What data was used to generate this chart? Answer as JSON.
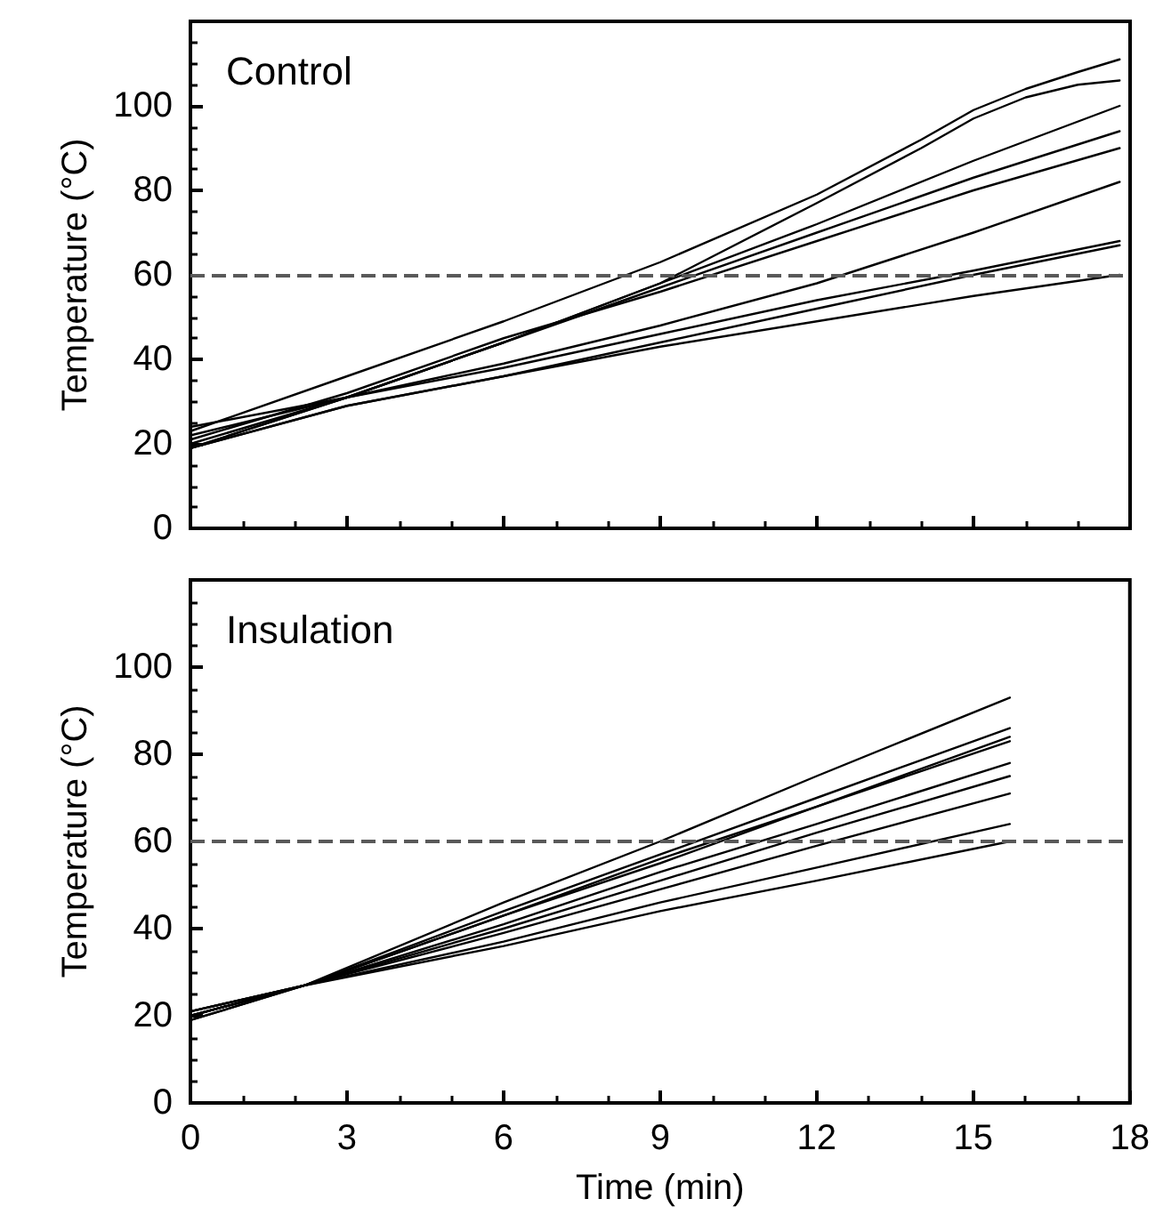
{
  "chart_data": [
    {
      "type": "line",
      "title": "Control",
      "ylabel": "Temperature (°C)",
      "xlim": [
        0,
        18
      ],
      "xticks": [
        0,
        3,
        6,
        9,
        12,
        15,
        18
      ],
      "ylim": [
        0,
        120
      ],
      "yticks": [
        0,
        20,
        40,
        60,
        80,
        100
      ],
      "tick_labels": "y",
      "line_style": "solid",
      "ref_lines": [
        {
          "axis": "y",
          "value": 60,
          "color": "#595959",
          "line_style": "dashed"
        }
      ],
      "series": [
        {
          "color": "#000000",
          "x": [
            0,
            3,
            6,
            9,
            12,
            14,
            15,
            16,
            17,
            17.8
          ],
          "values": [
            23,
            36,
            49,
            63,
            79,
            92,
            99,
            104,
            108,
            111
          ]
        },
        {
          "color": "#000000",
          "x": [
            0,
            3,
            6,
            9,
            12,
            14,
            15,
            16,
            17,
            17.8
          ],
          "values": [
            19,
            31,
            44,
            58,
            77,
            90,
            97,
            102,
            105,
            106
          ]
        },
        {
          "color": "#000000",
          "x": [
            0,
            3,
            6,
            9,
            12,
            15,
            17.8
          ],
          "values": [
            19,
            31,
            44,
            58,
            72,
            87,
            100
          ]
        },
        {
          "color": "#000000",
          "x": [
            0,
            3,
            6,
            9,
            12,
            15,
            17.8
          ],
          "values": [
            20,
            31,
            44,
            57,
            70,
            83,
            94
          ]
        },
        {
          "color": "#000000",
          "x": [
            0,
            3,
            6,
            9,
            12,
            15,
            17.8
          ],
          "values": [
            21,
            32,
            45,
            56,
            68,
            80,
            90
          ]
        },
        {
          "color": "#000000",
          "x": [
            0,
            3,
            6,
            9,
            12,
            15,
            17.8
          ],
          "values": [
            22,
            31,
            39,
            48,
            58,
            70,
            82
          ]
        },
        {
          "color": "#000000",
          "x": [
            0,
            3,
            6,
            9,
            12,
            15,
            17.8
          ],
          "values": [
            24,
            31,
            38,
            46,
            54,
            61,
            68
          ]
        },
        {
          "color": "#000000",
          "x": [
            0,
            3,
            6,
            9,
            12,
            15,
            17.8
          ],
          "values": [
            19,
            29,
            36,
            44,
            52,
            60,
            67
          ]
        },
        {
          "color": "#000000",
          "x": [
            0,
            3,
            6,
            9,
            12,
            15,
            17.8
          ],
          "values": [
            19,
            29,
            36,
            43,
            49,
            55,
            60
          ]
        }
      ]
    },
    {
      "type": "line",
      "title": "Insulation",
      "xlabel": "Time (min)",
      "ylabel": "Temperature (°C)",
      "xlim": [
        0,
        18
      ],
      "xticks": [
        0,
        3,
        6,
        9,
        12,
        15,
        18
      ],
      "ylim": [
        0,
        120
      ],
      "yticks": [
        0,
        20,
        40,
        60,
        80,
        100
      ],
      "line_style": "solid",
      "ref_lines": [
        {
          "axis": "y",
          "value": 60,
          "color": "#595959",
          "line_style": "dashed"
        }
      ],
      "series": [
        {
          "color": "#000000",
          "x": [
            0,
            2.2,
            6,
            9,
            12,
            15.7
          ],
          "values": [
            20,
            27,
            46,
            60,
            75,
            93
          ]
        },
        {
          "color": "#000000",
          "x": [
            0,
            2.2,
            6,
            9,
            12,
            15.7
          ],
          "values": [
            21,
            27,
            44,
            57,
            70,
            86
          ]
        },
        {
          "color": "#000000",
          "x": [
            0,
            2.2,
            6,
            9,
            12,
            15.7
          ],
          "values": [
            20,
            27,
            43,
            56,
            68,
            84
          ]
        },
        {
          "color": "#000000",
          "x": [
            0,
            2.2,
            6,
            9,
            12,
            15.7
          ],
          "values": [
            21,
            27,
            43,
            55,
            68,
            83
          ]
        },
        {
          "color": "#000000",
          "x": [
            0,
            2.2,
            6,
            9,
            12,
            15.7
          ],
          "values": [
            20,
            27,
            41,
            53,
            64,
            78
          ]
        },
        {
          "color": "#000000",
          "x": [
            0,
            2.2,
            6,
            9,
            12,
            15.7
          ],
          "values": [
            19,
            27,
            40,
            51,
            62,
            75
          ]
        },
        {
          "color": "#000000",
          "x": [
            0,
            2.2,
            6,
            9,
            12,
            15.7
          ],
          "values": [
            20,
            27,
            39,
            49,
            59,
            71
          ]
        },
        {
          "color": "#000000",
          "x": [
            0,
            2.2,
            6,
            9,
            12,
            15.7
          ],
          "values": [
            21,
            27,
            37,
            46,
            54,
            64
          ]
        },
        {
          "color": "#000000",
          "x": [
            0,
            2.2,
            6,
            9,
            12,
            15.7
          ],
          "values": [
            19,
            27,
            36,
            44,
            51,
            60
          ]
        }
      ]
    }
  ]
}
